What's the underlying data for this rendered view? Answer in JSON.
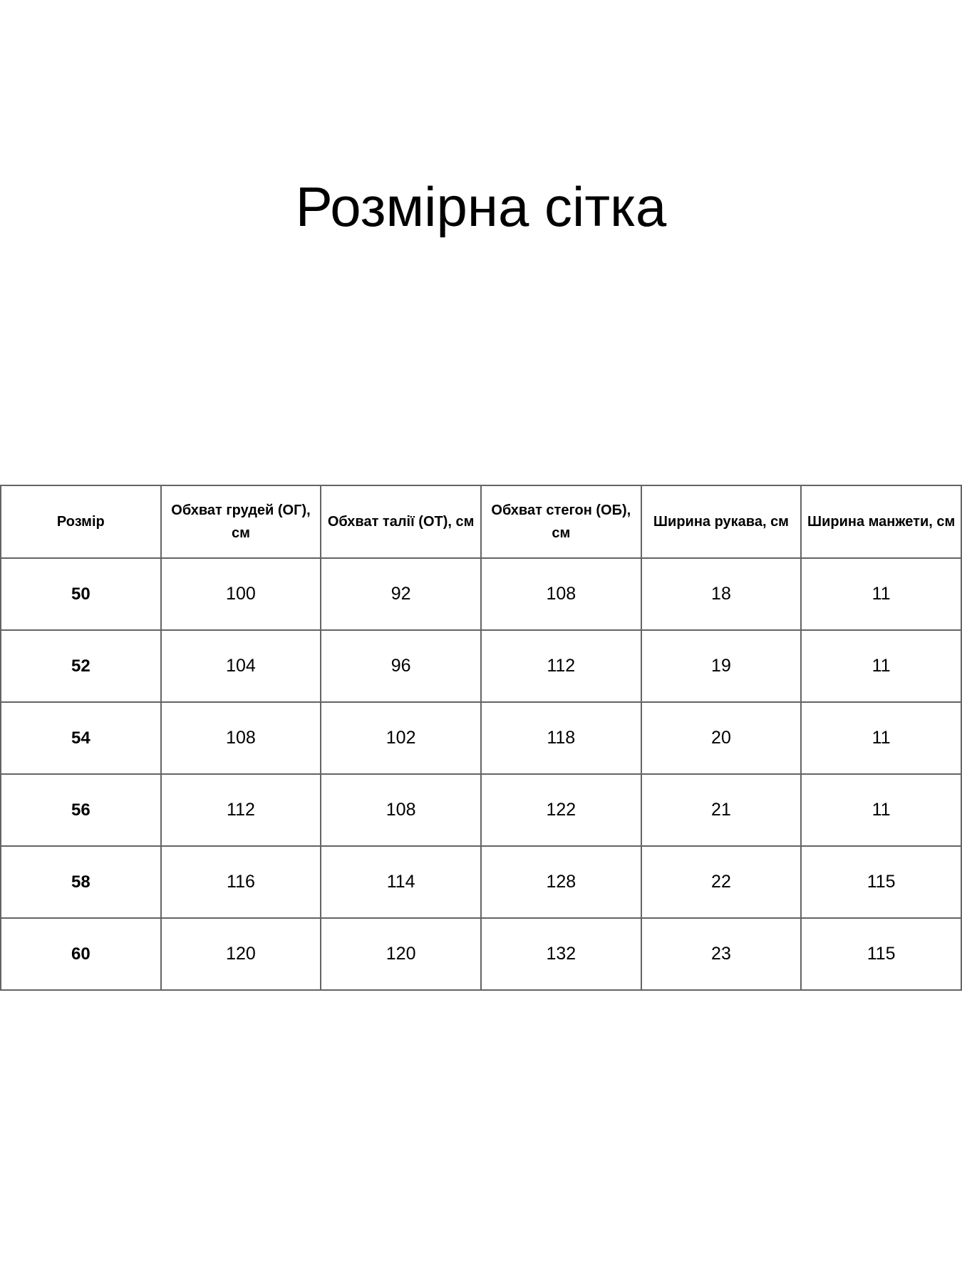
{
  "page_title": "Розмірна сітка",
  "size_table": {
    "headers": [
      "Розмір",
      "Обхват грудей (ОГ), см",
      "Обхват талії (ОТ), см",
      "Обхват стегон (ОБ), см",
      "Ширина рукава, см",
      "Ширина манжети, см"
    ],
    "rows": [
      {
        "cells": [
          "50",
          "100",
          "92",
          "108",
          "18",
          "11"
        ]
      },
      {
        "cells": [
          "52",
          "104",
          "96",
          "112",
          "19",
          "11"
        ]
      },
      {
        "cells": [
          "54",
          "108",
          "102",
          "118",
          "20",
          "11"
        ]
      },
      {
        "cells": [
          "56",
          "112",
          "108",
          "122",
          "21",
          "11"
        ]
      },
      {
        "cells": [
          "58",
          "116",
          "114",
          "128",
          "22",
          "115"
        ]
      },
      {
        "cells": [
          "60",
          "120",
          "120",
          "132",
          "23",
          "115"
        ]
      }
    ]
  }
}
